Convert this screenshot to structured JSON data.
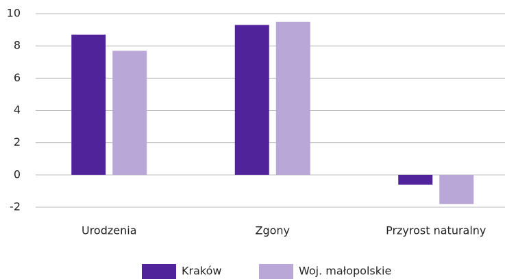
{
  "chart_data": {
    "type": "bar",
    "categories": [
      "Urodzenia",
      "Zgony",
      "Przyrost naturalny"
    ],
    "series": [
      {
        "name": "Kraków",
        "color": "#51239a",
        "values": [
          8.7,
          9.3,
          -0.6
        ]
      },
      {
        "name": "Woj. małopolskie",
        "color": "#b9a7d7",
        "values": [
          7.7,
          9.5,
          -1.8
        ]
      }
    ],
    "ylim": [
      -2,
      10
    ],
    "yticks": [
      -2,
      0,
      2,
      4,
      6,
      8,
      10
    ],
    "grid": true,
    "legend": "bottom"
  }
}
